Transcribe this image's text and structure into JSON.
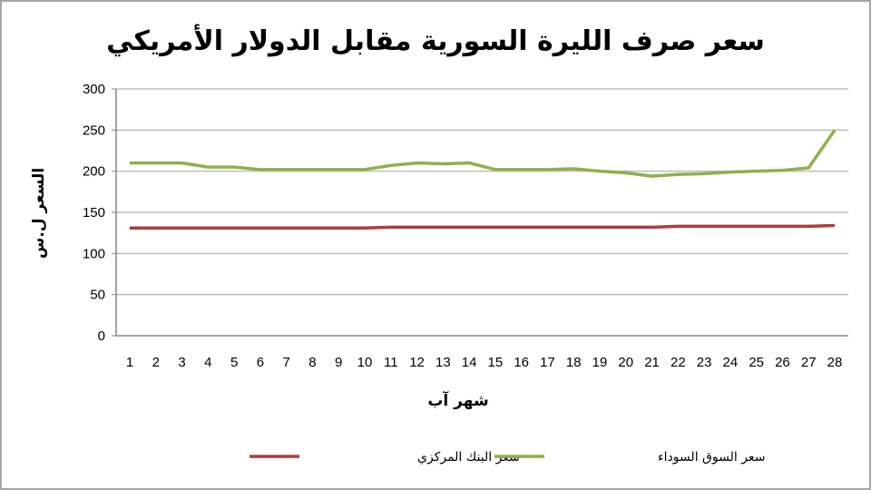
{
  "chart_data": {
    "type": "line",
    "title": "سعر صرف الليرة السورية مقابل الدولار الأمريكي",
    "xlabel": "شهر آب",
    "ylabel": "السعر ل.س",
    "ylim": [
      0,
      300
    ],
    "yticks": [
      0,
      50,
      100,
      150,
      200,
      250,
      300
    ],
    "grid": true,
    "legend": "bottom",
    "x": [
      1,
      2,
      3,
      4,
      5,
      6,
      7,
      8,
      9,
      10,
      11,
      12,
      13,
      14,
      15,
      16,
      17,
      18,
      19,
      20,
      21,
      22,
      23,
      24,
      25,
      26,
      27,
      28
    ],
    "series": [
      {
        "name": "سعر البنك المركزي",
        "color": "#a9403d",
        "values": [
          131,
          131,
          131,
          131,
          131,
          131,
          131,
          131,
          131,
          131,
          132,
          132,
          132,
          132,
          132,
          132,
          132,
          132,
          132,
          132,
          132,
          133,
          133,
          133,
          133,
          133,
          133,
          134
        ]
      },
      {
        "name": "سعر السوق السوداء",
        "color": "#8fb04c",
        "values": [
          210,
          210,
          210,
          205,
          205,
          202,
          202,
          202,
          202,
          202,
          207,
          210,
          209,
          210,
          202,
          202,
          202,
          203,
          200,
          198,
          194,
          196,
          197,
          199,
          200,
          201,
          204,
          250
        ]
      }
    ]
  }
}
